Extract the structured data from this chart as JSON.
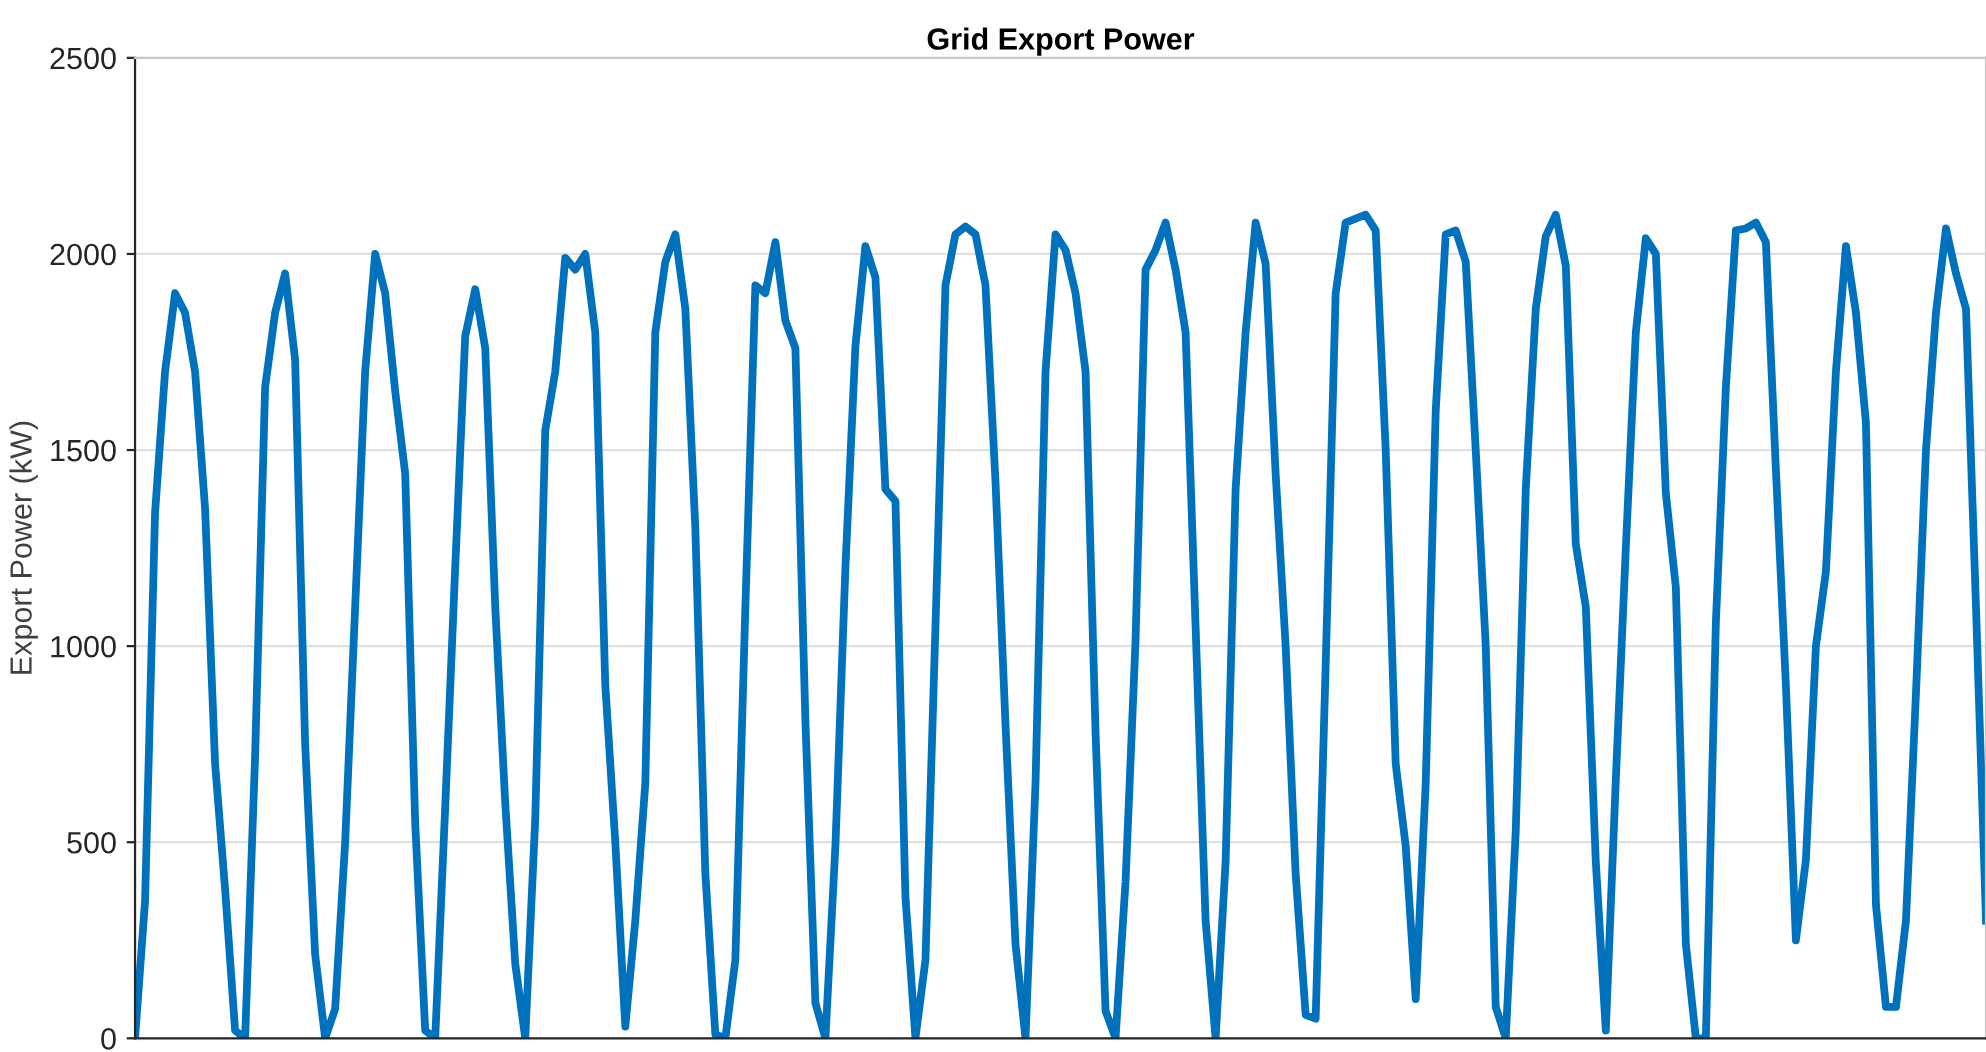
{
  "chart_data": {
    "type": "line",
    "title": "Grid Export Power",
    "ylabel": "Export Power (kW)",
    "categories": [
      null,
      null,
      null,
      null,
      null,
      null,
      null,
      null,
      null,
      null,
      null,
      null,
      null,
      null,
      null,
      null,
      null,
      null,
      null,
      null,
      null,
      null,
      null,
      null,
      null,
      null,
      null,
      null,
      null,
      null,
      null,
      null,
      null,
      null,
      null,
      null,
      null,
      null,
      null,
      null,
      null,
      null,
      null,
      null,
      null,
      null,
      null,
      null,
      null,
      null,
      null,
      null,
      null,
      null,
      null,
      null,
      null,
      null,
      null,
      null,
      null,
      null,
      null,
      null,
      null,
      null,
      null,
      null,
      null,
      null,
      null,
      null,
      null,
      null,
      null,
      null,
      null,
      null,
      null,
      null,
      null,
      null,
      null,
      null,
      null,
      null,
      null,
      null,
      null,
      null,
      null,
      null,
      null,
      null,
      null,
      null,
      null,
      null,
      null,
      null,
      null,
      null,
      null,
      null,
      null,
      null,
      null,
      null,
      null,
      null,
      null,
      null,
      null,
      null,
      null,
      null,
      null,
      null,
      null,
      null,
      null,
      null,
      null,
      null,
      null,
      null,
      null,
      null,
      null,
      null,
      null,
      null,
      null,
      null,
      null,
      null,
      null,
      null,
      null,
      null,
      null,
      null,
      null,
      null,
      null,
      null,
      null,
      null,
      null,
      null,
      null,
      null,
      null,
      null,
      null,
      null,
      null,
      null,
      null,
      null,
      null,
      null,
      null,
      null,
      null,
      null,
      null,
      null,
      null,
      null,
      null,
      null,
      null,
      null,
      null,
      null,
      null,
      null,
      null,
      null,
      null,
      null,
      null,
      null,
      null,
      null
    ],
    "series": [
      {
        "color": "#0072bd",
        "values": [
          0,
          350,
          1340,
          1700,
          1900,
          1850,
          1700,
          1350,
          700,
          380,
          20,
          0,
          720,
          1660,
          1850,
          1950,
          1730,
          750,
          214,
          0,
          75,
          500,
          1100,
          1700,
          2000,
          1900,
          1650,
          1440,
          550,
          20,
          0,
          590,
          1200,
          1790,
          1910,
          1760,
          1100,
          600,
          190,
          0,
          560,
          1550,
          1700,
          1990,
          1960,
          2000,
          1800,
          900,
          500,
          30,
          300,
          650,
          1800,
          1980,
          2050,
          1860,
          1300,
          420,
          10,
          0,
          200,
          1100,
          1920,
          1900,
          2030,
          1830,
          1760,
          810,
          90,
          0,
          490,
          1200,
          1765,
          2020,
          1940,
          1400,
          1370,
          360,
          0,
          200,
          1050,
          1920,
          2050,
          2070,
          2050,
          1920,
          1420,
          800,
          240,
          0,
          650,
          1700,
          2050,
          2010,
          1900,
          1700,
          780,
          70,
          0,
          400,
          1015,
          1960,
          2010,
          2080,
          1960,
          1800,
          1050,
          300,
          0,
          450,
          1400,
          1800,
          2080,
          1975,
          1440,
          1000,
          420,
          60,
          50,
          950,
          1900,
          2080,
          2090,
          2100,
          2060,
          1500,
          700,
          490,
          100,
          650,
          1600,
          2050,
          2060,
          1980,
          1500,
          1000,
          80,
          0,
          530,
          1400,
          1860,
          2045,
          2100,
          1970,
          1260,
          1100,
          450,
          20,
          660,
          1250,
          1800,
          2040,
          2000,
          1390,
          1150,
          240,
          0,
          0,
          1060,
          1660,
          2060,
          2065,
          2080,
          2030,
          1450,
          900,
          250,
          455,
          1000,
          1190,
          1700,
          2020,
          1850,
          1570,
          340,
          80,
          80,
          300,
          880,
          1500,
          1850,
          2065,
          1950,
          1860,
          1100,
          300
        ]
      }
    ],
    "ylim": [
      0,
      2500
    ],
    "yticks": [
      0,
      500,
      1000,
      1500,
      2000,
      2500
    ],
    "grid": "y",
    "tick_labels": "y",
    "line_style": "solid",
    "marker": "none"
  }
}
